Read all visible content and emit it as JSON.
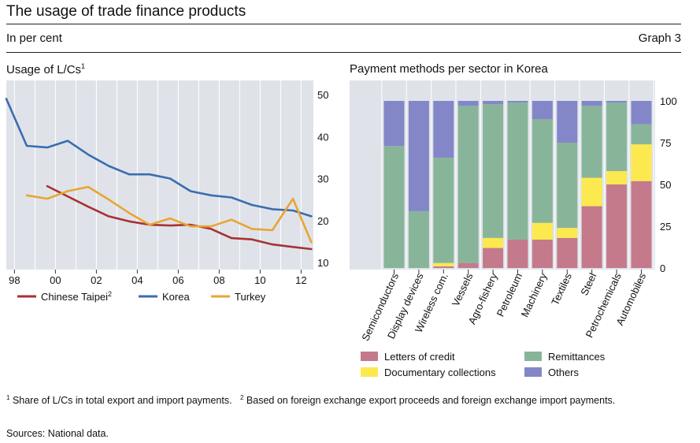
{
  "header": {
    "title": "The usage of trade finance products",
    "subtitle": "In per cent",
    "graph_number": "Graph 3"
  },
  "footnotes": {
    "fn1_mark": "1",
    "fn1_text": "Share of L/Cs in total export and import payments.",
    "fn2_mark": "2",
    "fn2_text": "Based on foreign exchange export proceeds and foreign exchange import payments."
  },
  "sources": "Sources: National data.",
  "colors": {
    "chinese_taipei": "#a83232",
    "korea": "#3a6db0",
    "turkey": "#e8a532",
    "letters_of_credit": "#c47a8b",
    "documentary_collections": "#fbe94f",
    "remittances": "#88b59a",
    "others": "#8387c8",
    "plot_bg": "#dfe3e9",
    "grid": "#ffffff"
  },
  "chart_data": [
    {
      "type": "line",
      "title": "Usage of L/Cs",
      "title_mark": "1",
      "ylim": [
        10,
        50
      ],
      "yticks": [
        10,
        20,
        30,
        40,
        50
      ],
      "xlim": [
        1997.6,
        2012.6
      ],
      "xticks": [
        1998,
        2000,
        2002,
        2004,
        2006,
        2008,
        2010,
        2012
      ],
      "xtick_labels": [
        "98",
        "00",
        "02",
        "04",
        "06",
        "08",
        "10",
        "12"
      ],
      "legend_position": "bottom",
      "grid": true,
      "series": [
        {
          "name": "Chinese Taipei",
          "name_mark": "2",
          "color": "#a83232",
          "x": [
            1999.6,
            2001.6,
            2002.6,
            2003.6,
            2004.6,
            2005.6,
            2006.6,
            2007.6,
            2008.6,
            2009.6,
            2010.6,
            2011.6,
            2012.5
          ],
          "y": [
            28.2,
            23.3,
            21.0,
            19.8,
            19.0,
            18.8,
            19.0,
            18.0,
            15.8,
            15.5,
            14.3,
            13.7,
            13.2
          ]
        },
        {
          "name": "Korea",
          "color": "#3a6db0",
          "x": [
            1997.6,
            1998.6,
            1999.6,
            2000.6,
            2001.6,
            2002.6,
            2003.6,
            2004.6,
            2005.6,
            2006.6,
            2007.6,
            2008.6,
            2009.6,
            2010.6,
            2011.6,
            2012.5
          ],
          "y": [
            49.0,
            37.8,
            37.4,
            39.0,
            35.7,
            33.0,
            31.0,
            31.0,
            30.0,
            27.0,
            26.0,
            25.5,
            23.7,
            22.7,
            22.4,
            21.0
          ]
        },
        {
          "name": "Turkey",
          "color": "#e8a532",
          "x": [
            1998.6,
            1999.6,
            2000.6,
            2001.6,
            2002.6,
            2003.6,
            2004.6,
            2005.6,
            2006.6,
            2007.6,
            2008.6,
            2009.6,
            2010.6,
            2011.6,
            2012.5
          ],
          "y": [
            26.0,
            25.2,
            27.0,
            28.0,
            25.0,
            21.8,
            19.0,
            20.5,
            18.6,
            18.6,
            20.2,
            18.0,
            17.7,
            25.2,
            14.8
          ]
        }
      ]
    },
    {
      "type": "bar",
      "stacked": true,
      "title": "Payment methods per sector in Korea",
      "ylim": [
        0,
        100
      ],
      "yticks": [
        0,
        25,
        50,
        75,
        100
      ],
      "legend_position": "bottom",
      "grid": true,
      "categories": [
        "Semiconductors",
        "Display devices",
        "Wireless com.",
        "Vessels",
        "Agro-fishery",
        "Petroleum",
        "Machinery",
        "Textiles",
        "Steel",
        "Petrochemicals",
        "Automobiles"
      ],
      "series": [
        {
          "name": "Letters of credit",
          "color": "#c47a8b",
          "values": [
            0,
            0,
            1,
            3,
            12,
            17,
            17,
            18,
            37,
            50,
            52
          ]
        },
        {
          "name": "Documentary collections",
          "color": "#fbe94f",
          "values": [
            0,
            0,
            2,
            0,
            6,
            0,
            10,
            6,
            17,
            8,
            22
          ]
        },
        {
          "name": "Remittances",
          "color": "#88b59a",
          "values": [
            73,
            34,
            63,
            94,
            80,
            82,
            62,
            51,
            43,
            41,
            12
          ]
        },
        {
          "name": "Others",
          "color": "#8387c8",
          "values": [
            27,
            66,
            34,
            3,
            2,
            1,
            11,
            25,
            3,
            1,
            14
          ]
        }
      ]
    }
  ]
}
